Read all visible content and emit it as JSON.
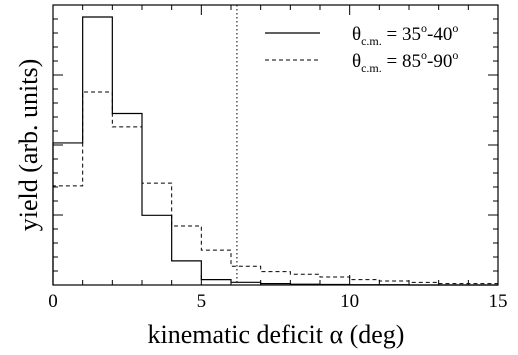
{
  "chart_data": {
    "type": "histogram",
    "xlabel": "kinematic deficit α (deg)",
    "ylabel": "yield (arb. units)",
    "xlim": [
      0,
      15
    ],
    "ylim": [
      0,
      1.0
    ],
    "x_ticks": [
      "0",
      "5",
      "10",
      "15"
    ],
    "bin_edges": [
      0,
      1,
      2,
      3,
      4,
      5,
      6,
      7,
      8,
      9,
      10,
      11,
      12,
      13,
      14,
      15
    ],
    "series": [
      {
        "name": "θc.m. = 35°-40°",
        "legend_parts": {
          "base": "θ",
          "sub": "c.m.",
          "mid": " = 35",
          "sup1": "o",
          "dash": "-40",
          "sup2": "o"
        },
        "style": "solid",
        "values": [
          0.53,
          1.0,
          0.64,
          0.26,
          0.09,
          0.02,
          0.01,
          0.005,
          0.003,
          0.002,
          0.001,
          0.001,
          0.0,
          0.0,
          0.0
        ]
      },
      {
        "name": "θc.m. = 85°-90°",
        "legend_parts": {
          "base": "θ",
          "sub": "c.m.",
          "mid": " = 85",
          "sup1": "o",
          "dash": "-90",
          "sup2": "o"
        },
        "style": "dashed",
        "values": [
          0.37,
          0.72,
          0.59,
          0.38,
          0.22,
          0.13,
          0.07,
          0.05,
          0.04,
          0.03,
          0.02,
          0.015,
          0.01,
          0.005,
          0.005
        ]
      }
    ],
    "reference_line": {
      "x": 6.2,
      "style": "dotted"
    },
    "grid": false,
    "legend_position": "top-right"
  }
}
